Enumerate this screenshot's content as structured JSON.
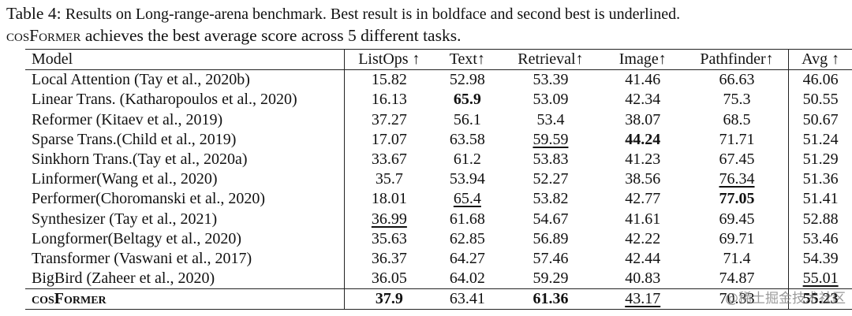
{
  "caption": {
    "label": "Table 4:",
    "text": "Results on Long-range-arena benchmark. Best result is in boldface and second best is underlined.",
    "model_name": "cosFormer",
    "text_end": "achieves the best average score across 5 different tasks."
  },
  "table": {
    "columns": [
      "Model",
      "ListOps ↑",
      "Text↑",
      "Retrieval↑",
      "Image↑",
      "Pathfinder↑",
      "Avg ↑"
    ],
    "rows": [
      {
        "model": "Local Attention (Tay et al., 2020b)",
        "scores": [
          "15.82",
          "52.98",
          "53.39",
          "41.46",
          "66.63",
          "46.06"
        ]
      },
      {
        "model": "Linear Trans. (Katharopoulos et al., 2020)",
        "scores": [
          "16.13",
          "65.9",
          "53.09",
          "42.34",
          "75.3",
          "50.55"
        ],
        "bold": [
          1
        ]
      },
      {
        "model": "Reformer (Kitaev et al., 2019)",
        "scores": [
          "37.27",
          "56.1",
          "53.4",
          "38.07",
          "68.5",
          "50.67"
        ]
      },
      {
        "model": "Sparse Trans.(Child et al., 2019)",
        "scores": [
          "17.07",
          "63.58",
          "59.59",
          "44.24",
          "71.71",
          "51.24"
        ],
        "bold": [
          3
        ],
        "underline": [
          2
        ]
      },
      {
        "model": "Sinkhorn Trans.(Tay et al., 2020a)",
        "scores": [
          "33.67",
          "61.2",
          "53.83",
          "41.23",
          "67.45",
          "51.29"
        ]
      },
      {
        "model": "Linformer(Wang et al., 2020)",
        "scores": [
          "35.7",
          "53.94",
          "52.27",
          "38.56",
          "76.34",
          "51.36"
        ],
        "underline": [
          4
        ]
      },
      {
        "model": "Performer(Choromanski et al., 2020)",
        "scores": [
          "18.01",
          "65.4",
          "53.82",
          "42.77",
          "77.05",
          "51.41"
        ],
        "bold": [
          4
        ],
        "underline": [
          1
        ]
      },
      {
        "model": "Synthesizer (Tay et al., 2021)",
        "scores": [
          "36.99",
          "61.68",
          "54.67",
          "41.61",
          "69.45",
          "52.88"
        ],
        "underline": [
          0
        ]
      },
      {
        "model": "Longformer(Beltagy et al., 2020)",
        "scores": [
          "35.63",
          "62.85",
          "56.89",
          "42.22",
          "69.71",
          "53.46"
        ]
      },
      {
        "model": "Transformer (Vaswani et al., 2017)",
        "scores": [
          "36.37",
          "64.27",
          "57.46",
          "42.44",
          "71.4",
          "54.39"
        ]
      },
      {
        "model": "BigBird (Zaheer et al., 2020)",
        "scores": [
          "36.05",
          "64.02",
          "59.29",
          "40.83",
          "74.87",
          "55.01"
        ],
        "underline": [
          5
        ]
      },
      {
        "model": "cosFormer",
        "scores": [
          "37.9",
          "63.41",
          "61.36",
          "43.17",
          "70.33",
          "55.23"
        ],
        "bold": [
          0,
          2,
          5
        ],
        "underline": [
          3
        ],
        "ours": true
      }
    ]
  },
  "watermark": "@稀土掘金技术社区"
}
